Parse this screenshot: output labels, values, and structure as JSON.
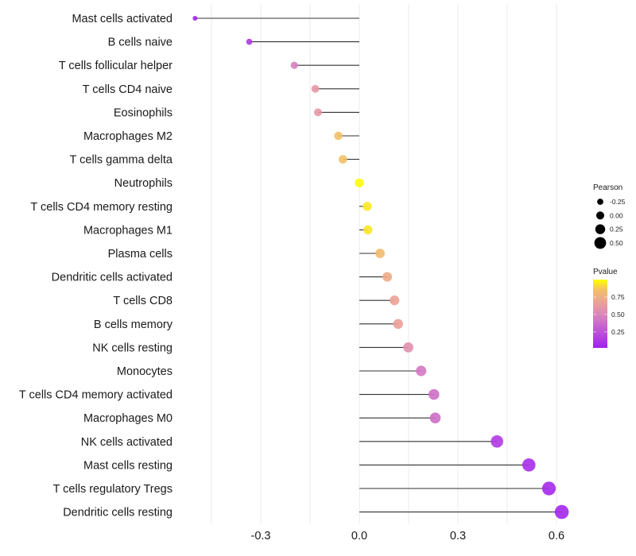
{
  "chart_data": {
    "type": "lollipop",
    "title": "",
    "xlabel": "",
    "ylabel": "",
    "xlim": [
      -0.48,
      0.64
    ],
    "x_ticks": [
      -0.3,
      0.0,
      0.3,
      0.6
    ],
    "x_tick_labels": [
      "-0.3",
      "0.0",
      "0.3",
      "0.6"
    ],
    "grid": true,
    "categories": [
      "Mast cells activated",
      "B cells naive",
      "T cells follicular helper",
      "T cells CD4 naive",
      "Eosinophils",
      "Macrophages M2",
      "T cells gamma delta",
      "Neutrophils",
      "T cells CD4 memory resting",
      "Macrophages M1",
      "Plasma cells",
      "Dendritic cells activated",
      "T cells CD8",
      "B cells memory",
      "NK cells resting",
      "Monocytes",
      "T cells CD4 memory activated",
      "Macrophages M0",
      "NK cells activated",
      "Mast cells resting",
      "T cells regulatory  Tregs ",
      "Dendritic cells resting"
    ],
    "pearson": [
      -0.5,
      -0.335,
      -0.198,
      -0.134,
      -0.126,
      -0.064,
      -0.05,
      0.0,
      0.024,
      0.026,
      0.063,
      0.085,
      0.107,
      0.118,
      0.149,
      0.188,
      0.227,
      0.231,
      0.419,
      0.516,
      0.577,
      0.616
    ],
    "pvalue": [
      0.02,
      0.12,
      0.45,
      0.6,
      0.6,
      0.85,
      0.85,
      0.99,
      0.95,
      0.94,
      0.82,
      0.72,
      0.67,
      0.65,
      0.55,
      0.42,
      0.38,
      0.37,
      0.12,
      0.06,
      0.04,
      0.03
    ],
    "legend": {
      "position": "right",
      "size_title": "Pearson",
      "size_breaks": [
        -0.25,
        0.0,
        0.25,
        0.5
      ],
      "size_labels": [
        "-0.25",
        "0.00",
        "0.25",
        "0.50"
      ],
      "color_title": "Pvalue",
      "color_breaks": [
        0.25,
        0.5,
        0.75
      ],
      "color_labels": [
        "0.25",
        "0.50",
        "0.75"
      ],
      "color_range": [
        0.0,
        1.0
      ],
      "color_low": "#a020f0",
      "color_mid": "#e08aa8",
      "color_midhigh": "#f0b87a",
      "color_high": "#ffff00"
    }
  }
}
